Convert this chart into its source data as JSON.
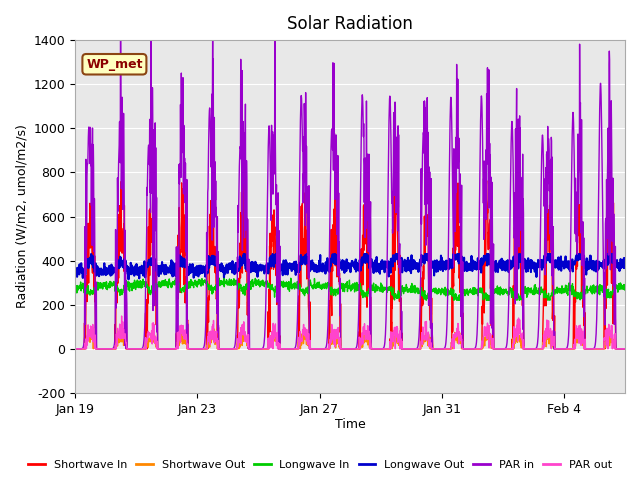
{
  "title": "Solar Radiation",
  "ylabel": "Radiation (W/m2, umol/m2/s)",
  "xlabel": "Time",
  "ylim": [
    -200,
    1400
  ],
  "yticks": [
    -200,
    0,
    200,
    400,
    600,
    800,
    1000,
    1200,
    1400
  ],
  "xlim_days": [
    0,
    18.0
  ],
  "xtick_positions": [
    0,
    4,
    8,
    12,
    16
  ],
  "xtick_labels": [
    "Jan 19",
    "Jan 23",
    "Jan 27",
    "Jan 31",
    "Feb 4"
  ],
  "label_box_text": "WP_met",
  "label_box_color": "#ffffc0",
  "label_box_border": "#8b4513",
  "label_text_color": "#8b0000",
  "plot_bg_color": "#e8e8e8",
  "series": [
    {
      "name": "Shortwave In",
      "color": "#ff0000",
      "lw": 1.0
    },
    {
      "name": "Shortwave Out",
      "color": "#ff8800",
      "lw": 1.0
    },
    {
      "name": "Longwave In",
      "color": "#00cc00",
      "lw": 1.0
    },
    {
      "name": "Longwave Out",
      "color": "#0000cc",
      "lw": 1.5
    },
    {
      "name": "PAR in",
      "color": "#9900cc",
      "lw": 1.0
    },
    {
      "name": "PAR out",
      "color": "#ff44cc",
      "lw": 1.0
    }
  ]
}
